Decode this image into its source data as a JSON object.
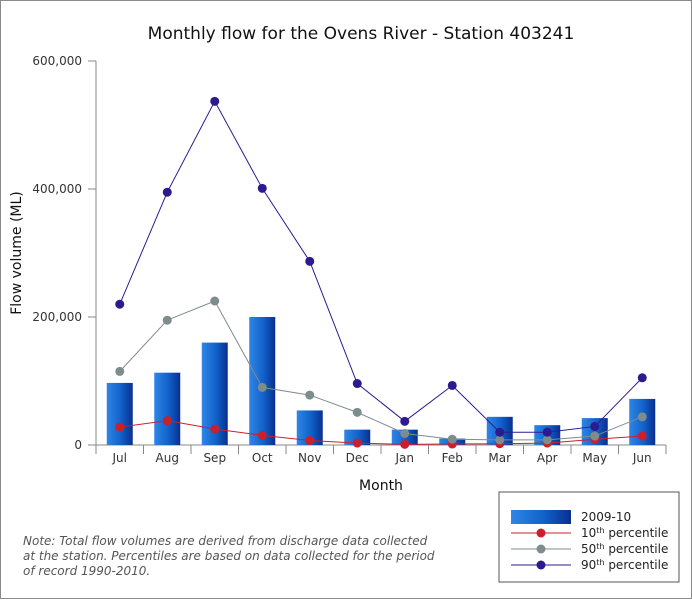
{
  "chart_data": {
    "type": "bar",
    "title": "Monthly flow for the Ovens River - Station 403241",
    "xlabel": "Month",
    "ylabel": "Flow volume (ML)",
    "ylim": [
      0,
      600000
    ],
    "yticks": [
      0,
      200000,
      400000,
      600000
    ],
    "ytick_labels": [
      "0",
      "200,000",
      "400,000",
      "600,000"
    ],
    "categories": [
      "Jul",
      "Aug",
      "Sep",
      "Oct",
      "Nov",
      "Dec",
      "Jan",
      "Feb",
      "Mar",
      "Apr",
      "May",
      "Jun"
    ],
    "bar_series": {
      "name": "2009-10",
      "values": [
        97000,
        113000,
        160000,
        200000,
        54000,
        24000,
        24000,
        10000,
        44000,
        31000,
        42000,
        72000
      ]
    },
    "line_series": [
      {
        "name": "10th percentile",
        "base": "10",
        "sup": "th",
        "suffix": " percentile",
        "color": "#cc1f2d",
        "values": [
          28000,
          38000,
          25000,
          15000,
          7000,
          3000,
          1000,
          1500,
          2000,
          3000,
          9000,
          14000
        ]
      },
      {
        "name": "50th percentile",
        "base": "50",
        "sup": "th",
        "suffix": " percentile",
        "color": "#7e8c8e",
        "values": [
          115000,
          195000,
          225000,
          90000,
          78000,
          51000,
          18000,
          9000,
          8000,
          8000,
          14000,
          44000
        ]
      },
      {
        "name": "90th percentile",
        "base": "90",
        "sup": "th",
        "suffix": " percentile",
        "color": "#2e1a8f",
        "values": [
          220000,
          395000,
          537000,
          401000,
          287000,
          96000,
          37000,
          93000,
          20000,
          20000,
          29000,
          105000
        ]
      }
    ],
    "legend_position": "bottom-right",
    "grid": false
  },
  "note": {
    "lines": [
      "Note: Total flow volumes are derived from discharge data collected",
      "at the station. Percentiles are based on data collected for the period",
      "of record 1990-2010."
    ]
  }
}
